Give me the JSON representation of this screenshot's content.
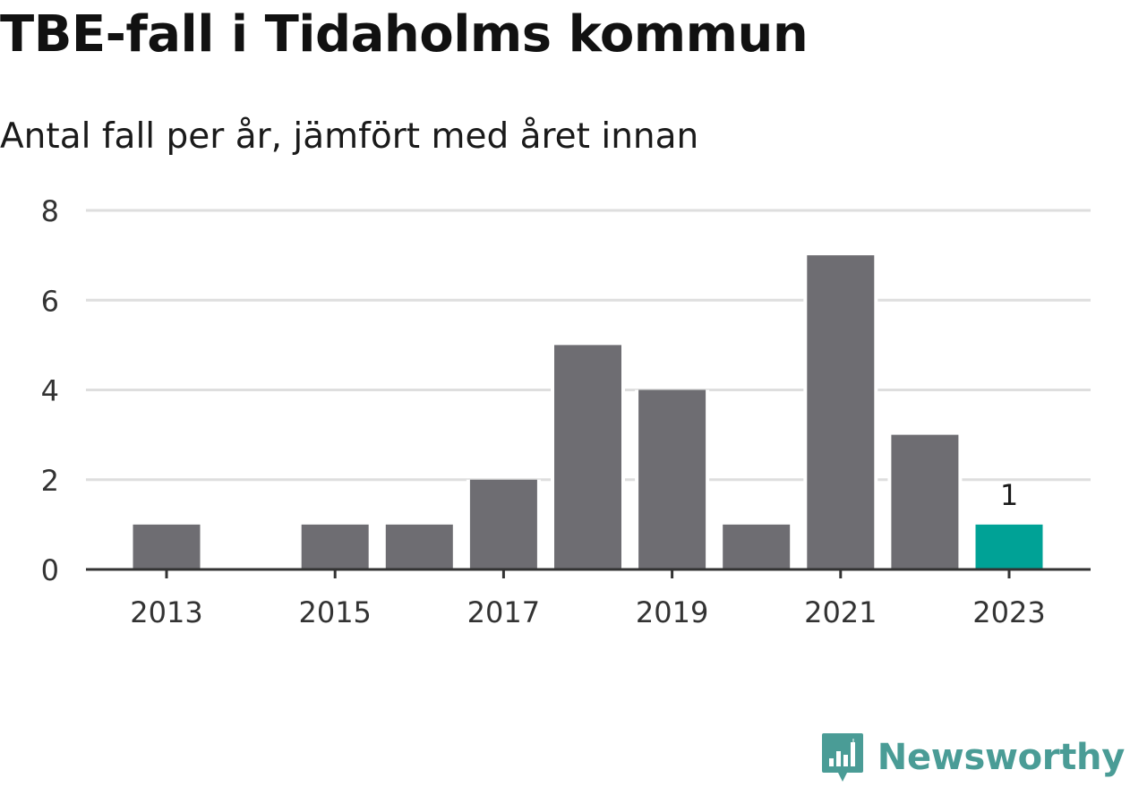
{
  "colors": {
    "bar": "#6e6d72",
    "highlight": "#00a296",
    "grid": "#dedede",
    "axis": "#333333",
    "brand": "#4a9c96"
  },
  "brand": {
    "name": "Newsworthy",
    "icon": "chart-badge-icon"
  },
  "chart_data": {
    "type": "bar",
    "title": "TBE-fall i Tidaholms kommun",
    "subtitle": "Antal fall per år, jämfört med året innan",
    "xlabel": "",
    "ylabel": "",
    "categories": [
      "2013",
      "2014",
      "2015",
      "2016",
      "2017",
      "2018",
      "2019",
      "2020",
      "2021",
      "2022",
      "2023"
    ],
    "values": [
      1,
      0,
      1,
      1,
      2,
      5,
      4,
      1,
      7,
      3,
      1
    ],
    "highlight_index": 10,
    "data_labels": [
      {
        "category": "2023",
        "text": "1"
      }
    ],
    "x_tick_labels": [
      "2013",
      "2015",
      "2017",
      "2019",
      "2021",
      "2023"
    ],
    "y_ticks": [
      0,
      2,
      4,
      6,
      8
    ],
    "ylim": [
      0,
      8
    ],
    "grid": true,
    "legend": "none"
  }
}
